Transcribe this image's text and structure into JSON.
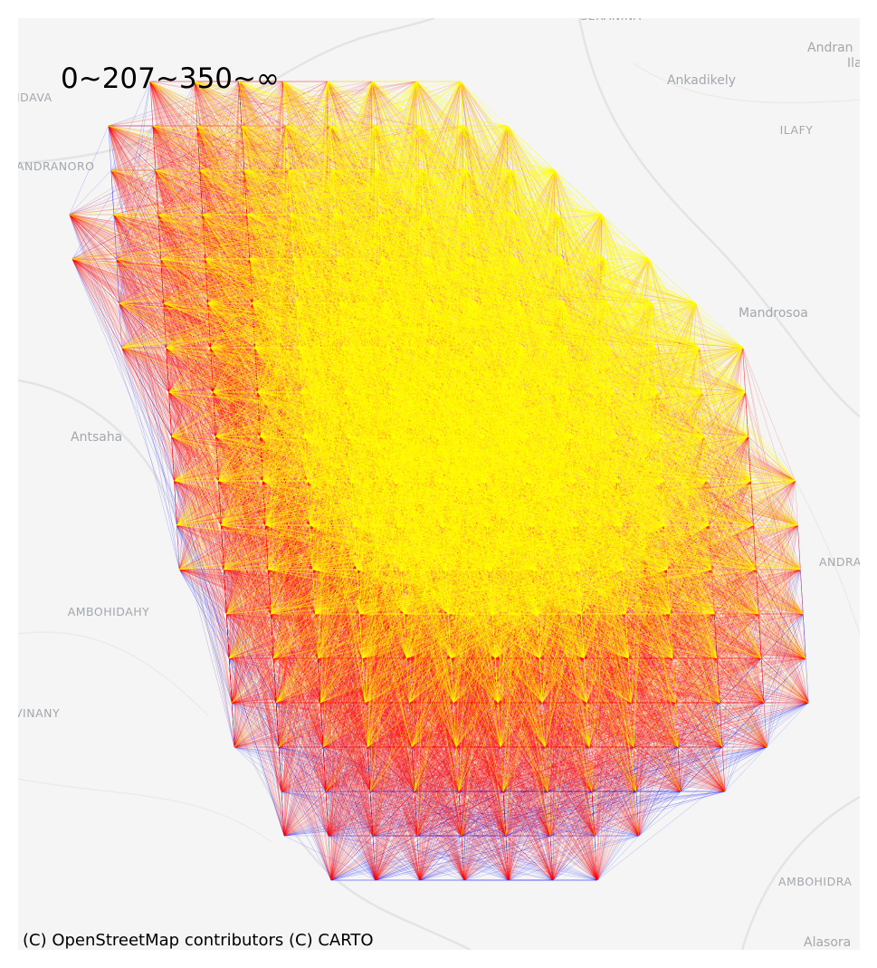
{
  "legend": "0~207~350~∞",
  "attribution": "(C) OpenStreetMap contributors (C) CARTO",
  "places": [
    "Ankadikely",
    "ILAFY",
    "Andran",
    "Ila",
    "IDAVA",
    "ANDRANORO",
    "Mandrosoa",
    "Antsaha",
    "AMBOHIDAHY",
    "VINANY",
    "ANDRA",
    "AMBOHIDRA",
    "Alasora",
    "SERANINA"
  ]
}
